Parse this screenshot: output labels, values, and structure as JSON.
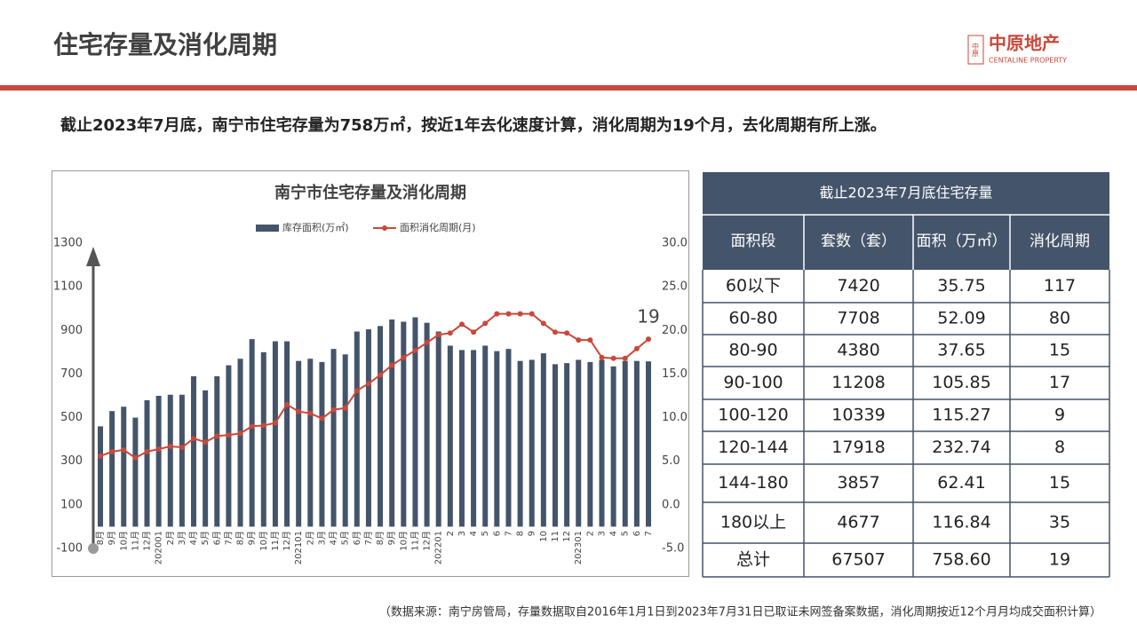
{
  "header": {
    "title": "住宅存量及消化周期",
    "stamp": "中原",
    "logo": "中原地产",
    "logo_en": "CENTALINE PROPERTY"
  },
  "summary": "截止2023年7月底，南宁市住宅存量为758万㎡，按近1年去化速度计算，消化周期为19个月，去化周期有所上涨。",
  "chart_data": {
    "type": "bar",
    "title": "南宁市住宅存量及消化周期",
    "categories": [
      "8月",
      "9月",
      "10月",
      "11月",
      "12月",
      "202001",
      "2月",
      "3月",
      "4月",
      "5月",
      "6月",
      "7月",
      "8月",
      "9月",
      "10月",
      "11月",
      "12月",
      "202101",
      "2月",
      "3月",
      "4月",
      "5月",
      "6月",
      "7月",
      "8月",
      "9月",
      "10月",
      "11月",
      "12月",
      "202201",
      "2",
      "3",
      "4",
      "5",
      "6",
      "7",
      "8",
      "9",
      "10",
      "11",
      "12",
      "202301",
      "2",
      "3",
      "4",
      "5",
      "6",
      "7"
    ],
    "series": [
      {
        "name": "库存面积(万㎡)",
        "color": "#44546a",
        "values": [
          460,
          530,
          550,
          500,
          580,
          600,
          605,
          605,
          690,
          625,
          690,
          740,
          770,
          860,
          800,
          850,
          850,
          760,
          770,
          755,
          815,
          790,
          895,
          905,
          920,
          950,
          940,
          960,
          935,
          895,
          830,
          810,
          810,
          830,
          805,
          815,
          760,
          765,
          795,
          745,
          750,
          765,
          755,
          765,
          735,
          760,
          760,
          758
        ]
      },
      {
        "name": "面积消化周期(月)",
        "color": "#c9483a",
        "axis": "y2",
        "type": "line",
        "values": [
          5.6,
          6.1,
          6.3,
          5.4,
          6.1,
          6.4,
          6.7,
          6.6,
          7.6,
          7.2,
          7.9,
          8.0,
          8.2,
          9.0,
          9.1,
          9.4,
          11.5,
          10.7,
          10.5,
          9.9,
          10.9,
          11.1,
          13.1,
          13.9,
          14.9,
          16.0,
          16.9,
          17.7,
          18.6,
          19.5,
          19.7,
          20.7,
          19.8,
          20.8,
          21.9,
          21.9,
          21.9,
          21.9,
          20.8,
          19.8,
          19.7,
          18.9,
          18.9,
          16.9,
          16.8,
          16.8,
          17.9,
          19
        ]
      }
    ],
    "ylim": [
      -100,
      1300
    ],
    "yticks": [
      -100,
      100,
      300,
      500,
      700,
      900,
      1100,
      1300
    ],
    "y2lim": [
      -5,
      30
    ],
    "y2ticks": [
      {
        "value": -5,
        "label": "-5.0"
      },
      {
        "value": 0,
        "label": "0.0"
      },
      {
        "value": 5,
        "label": "5.0"
      },
      {
        "value": 10,
        "label": "10.0"
      },
      {
        "value": 15,
        "label": "15.0"
      },
      {
        "value": 20,
        "label": "20.0"
      },
      {
        "value": 25,
        "label": "25.0"
      },
      {
        "value": 30,
        "label": "30.0"
      }
    ]
  },
  "table": {
    "title": "截止2023年7月底住宅存量",
    "columns": [
      "面积段",
      "套数（套）",
      "面积（万㎡）",
      "消化周期"
    ],
    "rows": [
      [
        "60以下",
        "7420",
        "35.75",
        "117"
      ],
      [
        "60-80",
        "7708",
        "52.09",
        "80"
      ],
      [
        "80-90",
        "4380",
        "37.65",
        "15"
      ],
      [
        "90-100",
        "11208",
        "105.85",
        "17"
      ],
      [
        "100-120",
        "10339",
        "115.27",
        "9"
      ],
      [
        "120-144",
        "17918",
        "232.74",
        "8"
      ],
      [
        "144-180",
        "3857",
        "62.41",
        "15"
      ],
      [
        "180以上",
        "4677",
        "116.84",
        "35"
      ],
      [
        "总计",
        "67507",
        "758.60",
        "19"
      ]
    ]
  },
  "footnote": "（数据来源：南宁房管局，存量数据取自2016年1月1日到2023年7月31日已取证未网签备案数据，消化周期按近12个月月均成交面积计算）"
}
